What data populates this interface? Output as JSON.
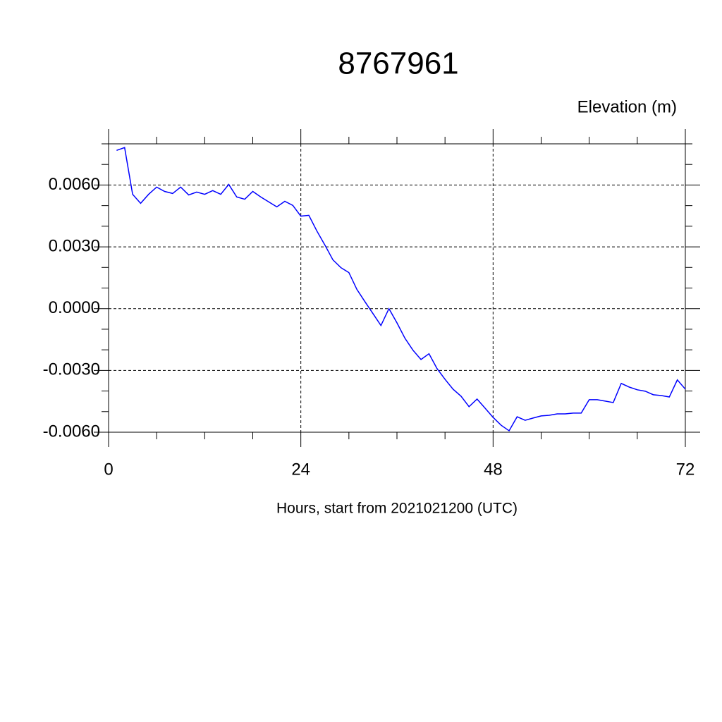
{
  "chart_data": {
    "type": "line",
    "title": "8767961",
    "y_label": "Elevation (m)",
    "x_label": "Hours, start from 2021021200 (UTC)",
    "xlim": [
      0,
      72
    ],
    "ylim": [
      -0.006,
      0.008
    ],
    "xticks": [
      0,
      24,
      48,
      72
    ],
    "xminorticks": [
      6,
      12,
      18,
      30,
      36,
      42,
      54,
      60,
      66
    ],
    "yticks": [
      {
        "value": -0.006,
        "label": "-0.0060"
      },
      {
        "value": -0.003,
        "label": "-0.0030"
      },
      {
        "value": 0,
        "label": "0.0000"
      },
      {
        "value": 0.003,
        "label": "0.0030"
      },
      {
        "value": 0.006,
        "label": "0.0060"
      }
    ],
    "yminorticks": [
      -0.005,
      -0.004,
      -0.002,
      -0.001,
      0.001,
      0.002,
      0.004,
      0.005,
      0.007,
      0.008
    ],
    "grid": true,
    "x": [
      1,
      2,
      3,
      4,
      5,
      6,
      7,
      8,
      9,
      10,
      11,
      12,
      13,
      14,
      15,
      16,
      17,
      18,
      19,
      20,
      21,
      22,
      23,
      24,
      25,
      26,
      27,
      28,
      29,
      30,
      31,
      32,
      33,
      34,
      35,
      36,
      37,
      38,
      39,
      40,
      41,
      42,
      43,
      44,
      45,
      46,
      47,
      48,
      49,
      50,
      51,
      52,
      53,
      54,
      55,
      56,
      57,
      58,
      59,
      60,
      61,
      62,
      63,
      64,
      65,
      66,
      67,
      68,
      69,
      70,
      71,
      72
    ],
    "series": [
      {
        "color": "#0000ff",
        "values": [
          0.00768,
          0.00782,
          0.00555,
          0.00511,
          0.00555,
          0.0059,
          0.00569,
          0.00559,
          0.0059,
          0.00552,
          0.00566,
          0.00555,
          0.00573,
          0.00555,
          0.00603,
          0.00542,
          0.00531,
          0.00569,
          0.00542,
          0.00518,
          0.00494,
          0.00521,
          0.00501,
          0.00449,
          0.00453,
          0.00377,
          0.00309,
          0.00237,
          0.00199,
          0.00175,
          0.00093,
          0.00034,
          -0.00024,
          -0.00082,
          0,
          -0.00069,
          -0.00144,
          -0.00202,
          -0.00247,
          -0.00219,
          -0.00291,
          -0.00343,
          -0.00391,
          -0.00425,
          -0.00476,
          -0.00439,
          -0.00483,
          -0.00528,
          -0.00566,
          -0.00593,
          -0.00525,
          -0.00542,
          -0.00531,
          -0.00521,
          -0.00518,
          -0.00511,
          -0.00511,
          -0.00507,
          -0.00507,
          -0.00442,
          -0.00442,
          -0.00449,
          -0.00456,
          -0.00363,
          -0.00381,
          -0.00394,
          -0.00401,
          -0.00418,
          -0.00422,
          -0.00429,
          -0.00346,
          -0.00391
        ]
      }
    ]
  }
}
